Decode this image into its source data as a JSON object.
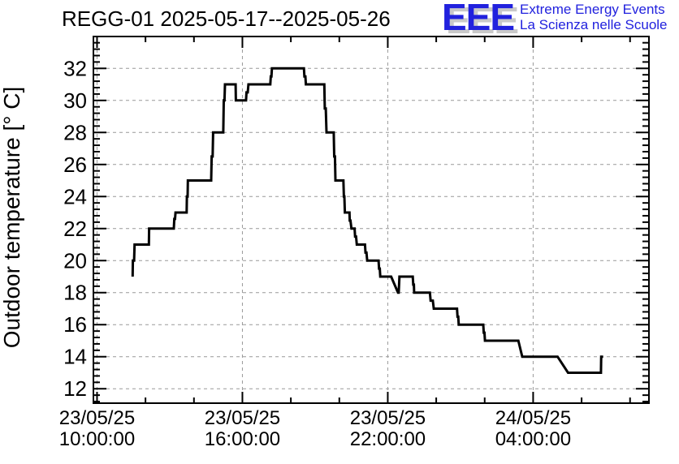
{
  "header": {
    "title": "REGG-01 2025-05-17--2025-05-26",
    "logo": {
      "acronym": "EEE",
      "line1": "Extreme Energy Events",
      "line2": "La Scienza nelle Scuole",
      "blue": "#2121de",
      "shadow_gray": "#c9c9c9"
    }
  },
  "chart_data": {
    "type": "line",
    "line_style": "steps",
    "title": "REGG-01 2025-05-17--2025-05-26",
    "ylabel": "Outdoor temperature [° C]",
    "xlabel": "",
    "x_unit": "hours since 2025-05-23 00:00:00",
    "y_unit": "degrees Celsius",
    "xlim": [
      9.85,
      32.78
    ],
    "ylim": [
      11.1,
      33.99
    ],
    "grid": true,
    "grid_color": "#999999",
    "line_color": "#000000",
    "background": "#ffffff",
    "x_ticks": [
      {
        "hour": 10,
        "date": "23/05/25",
        "time": "10:00:00"
      },
      {
        "hour": 16,
        "date": "23/05/25",
        "time": "16:00:00"
      },
      {
        "hour": 22,
        "date": "23/05/25",
        "time": "22:00:00"
      },
      {
        "hour": 28,
        "date": "24/05/25",
        "time": "04:00:00"
      }
    ],
    "x_minor_ticks": [
      12,
      14,
      18,
      20,
      24,
      26,
      30,
      32
    ],
    "y_major_ticks": [
      12,
      14,
      16,
      18,
      20,
      22,
      24,
      26,
      28,
      30,
      32
    ],
    "y_minor_step": 0.4,
    "points": [
      [
        11.47,
        19
      ],
      [
        11.48,
        20
      ],
      [
        11.53,
        20
      ],
      [
        11.55,
        21
      ],
      [
        12.14,
        21
      ],
      [
        12.15,
        22
      ],
      [
        13.17,
        22
      ],
      [
        13.19,
        22.6
      ],
      [
        13.22,
        22.6
      ],
      [
        13.24,
        23
      ],
      [
        13.7,
        23
      ],
      [
        13.71,
        24
      ],
      [
        13.74,
        24
      ],
      [
        13.75,
        25
      ],
      [
        14.71,
        25
      ],
      [
        14.73,
        26.5
      ],
      [
        14.77,
        26.5
      ],
      [
        14.79,
        28
      ],
      [
        15.21,
        28
      ],
      [
        15.23,
        30
      ],
      [
        15.26,
        30
      ],
      [
        15.28,
        31
      ],
      [
        15.72,
        31
      ],
      [
        15.73,
        30
      ],
      [
        16.15,
        30
      ],
      [
        16.17,
        30.5
      ],
      [
        16.22,
        30.5
      ],
      [
        16.25,
        31
      ],
      [
        17.15,
        31
      ],
      [
        17.17,
        31.5
      ],
      [
        17.2,
        31.5
      ],
      [
        17.22,
        32
      ],
      [
        18.54,
        32
      ],
      [
        18.56,
        31.5
      ],
      [
        18.6,
        31.5
      ],
      [
        18.62,
        31
      ],
      [
        19.38,
        31
      ],
      [
        19.4,
        29.5
      ],
      [
        19.44,
        29.5
      ],
      [
        19.47,
        28
      ],
      [
        19.77,
        28
      ],
      [
        19.79,
        26.5
      ],
      [
        19.82,
        26.5
      ],
      [
        19.84,
        25
      ],
      [
        20.17,
        25
      ],
      [
        20.19,
        24
      ],
      [
        20.21,
        24
      ],
      [
        20.23,
        23
      ],
      [
        20.42,
        23
      ],
      [
        20.43,
        22.5
      ],
      [
        20.46,
        22.5
      ],
      [
        20.5,
        22
      ],
      [
        20.63,
        22
      ],
      [
        20.65,
        21.5
      ],
      [
        20.69,
        21.5
      ],
      [
        20.72,
        21
      ],
      [
        21.06,
        21
      ],
      [
        21.08,
        20.5
      ],
      [
        21.12,
        20.5
      ],
      [
        21.15,
        20
      ],
      [
        21.62,
        20
      ],
      [
        21.64,
        19.5
      ],
      [
        21.67,
        19.5
      ],
      [
        21.69,
        19
      ],
      [
        22.14,
        19
      ],
      [
        22.42,
        18
      ],
      [
        22.45,
        18
      ],
      [
        22.48,
        19
      ],
      [
        23.03,
        19
      ],
      [
        23.05,
        18.5
      ],
      [
        23.08,
        18.5
      ],
      [
        23.09,
        18
      ],
      [
        23.74,
        18
      ],
      [
        23.77,
        17.5
      ],
      [
        23.86,
        17.5
      ],
      [
        23.9,
        17
      ],
      [
        24.86,
        17
      ],
      [
        24.88,
        16.5
      ],
      [
        24.91,
        16.5
      ],
      [
        24.93,
        16
      ],
      [
        25.94,
        16
      ],
      [
        25.96,
        15.5
      ],
      [
        25.99,
        15.5
      ],
      [
        26.01,
        15
      ],
      [
        27.39,
        15
      ],
      [
        27.55,
        14
      ],
      [
        29.01,
        14
      ],
      [
        29.44,
        13
      ],
      [
        30.8,
        13
      ],
      [
        30.81,
        14
      ],
      [
        30.89,
        14
      ]
    ]
  }
}
